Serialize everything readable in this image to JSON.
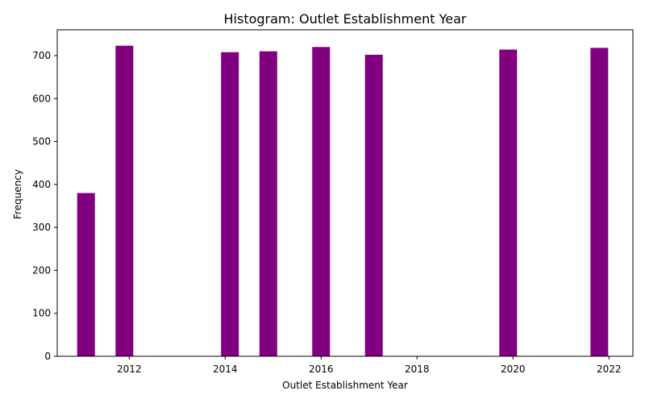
{
  "chart_data": {
    "type": "bar",
    "title": "Histogram: Outlet Establishment Year",
    "xlabel": "Outlet Establishment Year",
    "ylabel": "Frequency",
    "x": [
      2011.1,
      2011.9,
      2014.1,
      2014.9,
      2016.0,
      2017.1,
      2019.9,
      2021.8
    ],
    "values": [
      380,
      723,
      708,
      710,
      720,
      702,
      714,
      718
    ],
    "xlim": [
      2010.5,
      2022.5
    ],
    "ylim": [
      0,
      760
    ],
    "xticks": [
      2012,
      2014,
      2016,
      2018,
      2020,
      2022
    ],
    "yticks": [
      0,
      100,
      200,
      300,
      400,
      500,
      600,
      700
    ],
    "bar_color": "#800080",
    "grid": false
  }
}
